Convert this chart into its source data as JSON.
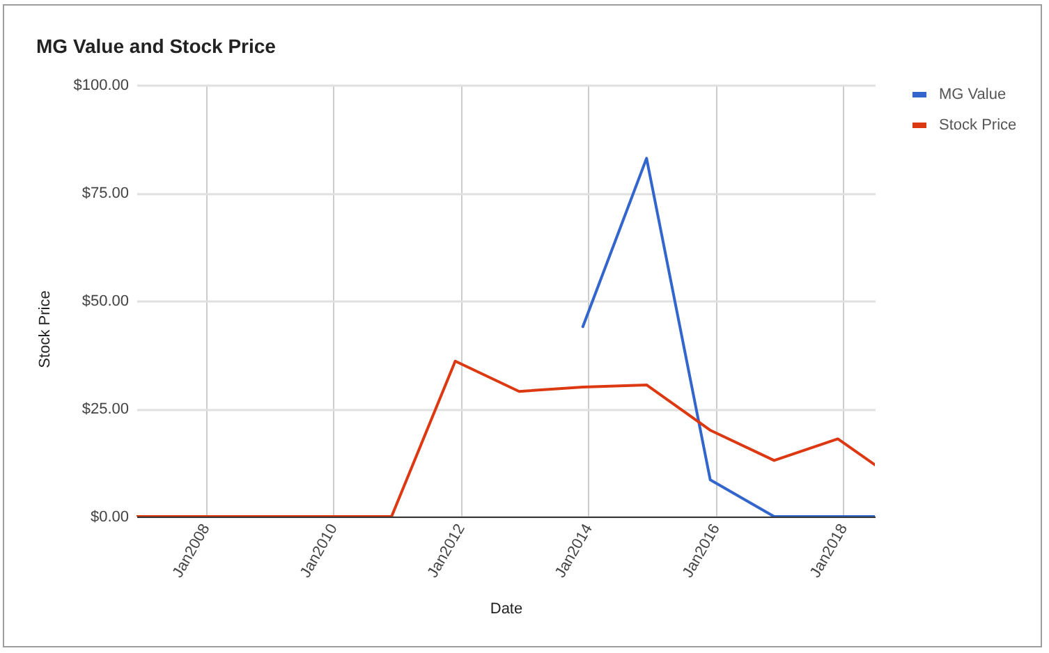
{
  "chart_data": {
    "type": "line",
    "title": "MG Value and Stock Price",
    "xlabel": "Date",
    "ylabel": "Stock Price",
    "x": [
      "2006-12",
      "2007-12",
      "2008-12",
      "2009-12",
      "2010-12",
      "2011-12",
      "2012-12",
      "2013-12",
      "2014-12",
      "2015-12",
      "2016-12",
      "2017-12",
      "2018-07"
    ],
    "series": [
      {
        "name": "MG Value",
        "color": "#3366cc",
        "values": [
          null,
          null,
          null,
          null,
          null,
          null,
          null,
          44,
          83,
          8.5,
          0,
          0,
          0
        ]
      },
      {
        "name": "Stock Price",
        "color": "#dc3912",
        "values": [
          0,
          0,
          0,
          0,
          0,
          36,
          29,
          30,
          30.5,
          20,
          13,
          18,
          12
        ]
      }
    ],
    "xlim": [
      "2006-12",
      "2018-07"
    ],
    "xticks": [
      {
        "value": "2008-01",
        "label": "Jan2008"
      },
      {
        "value": "2010-01",
        "label": "Jan2010"
      },
      {
        "value": "2012-01",
        "label": "Jan2012"
      },
      {
        "value": "2014-01",
        "label": "Jan2014"
      },
      {
        "value": "2016-01",
        "label": "Jan2016"
      },
      {
        "value": "2018-01",
        "label": "Jan2018"
      }
    ],
    "ylim": [
      0,
      100
    ],
    "yticks": [
      {
        "value": 0,
        "label": "$0.00"
      },
      {
        "value": 25,
        "label": "$25.00"
      },
      {
        "value": 50,
        "label": "$50.00"
      },
      {
        "value": 75,
        "label": "$75.00"
      },
      {
        "value": 100,
        "label": "$100.00"
      }
    ],
    "grid": true,
    "legend": "right"
  }
}
